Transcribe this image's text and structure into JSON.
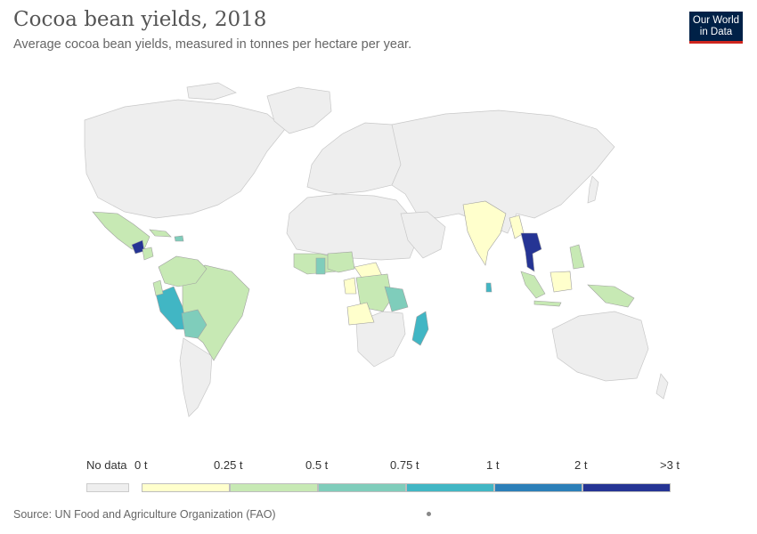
{
  "header": {
    "title": "Cocoa bean yields, 2018",
    "subtitle": "Average cocoa bean yields, measured in tonnes per hectare per year."
  },
  "logo": {
    "line1": "Our World",
    "line2": "in Data"
  },
  "legend": {
    "no_data_label": "No data",
    "no_data_color": "#eeeeee",
    "ticks": [
      "0 t",
      "0.25 t",
      "0.5 t",
      "0.75 t",
      "1 t",
      "2 t",
      ">3 t"
    ],
    "colors": [
      "#ffffcc",
      "#c7e9b4",
      "#7fcdbb",
      "#41b6c4",
      "#2c7fb8",
      "#253494"
    ]
  },
  "footer": {
    "source": "Source: UN Food and Agriculture Organization (FAO)"
  }
}
